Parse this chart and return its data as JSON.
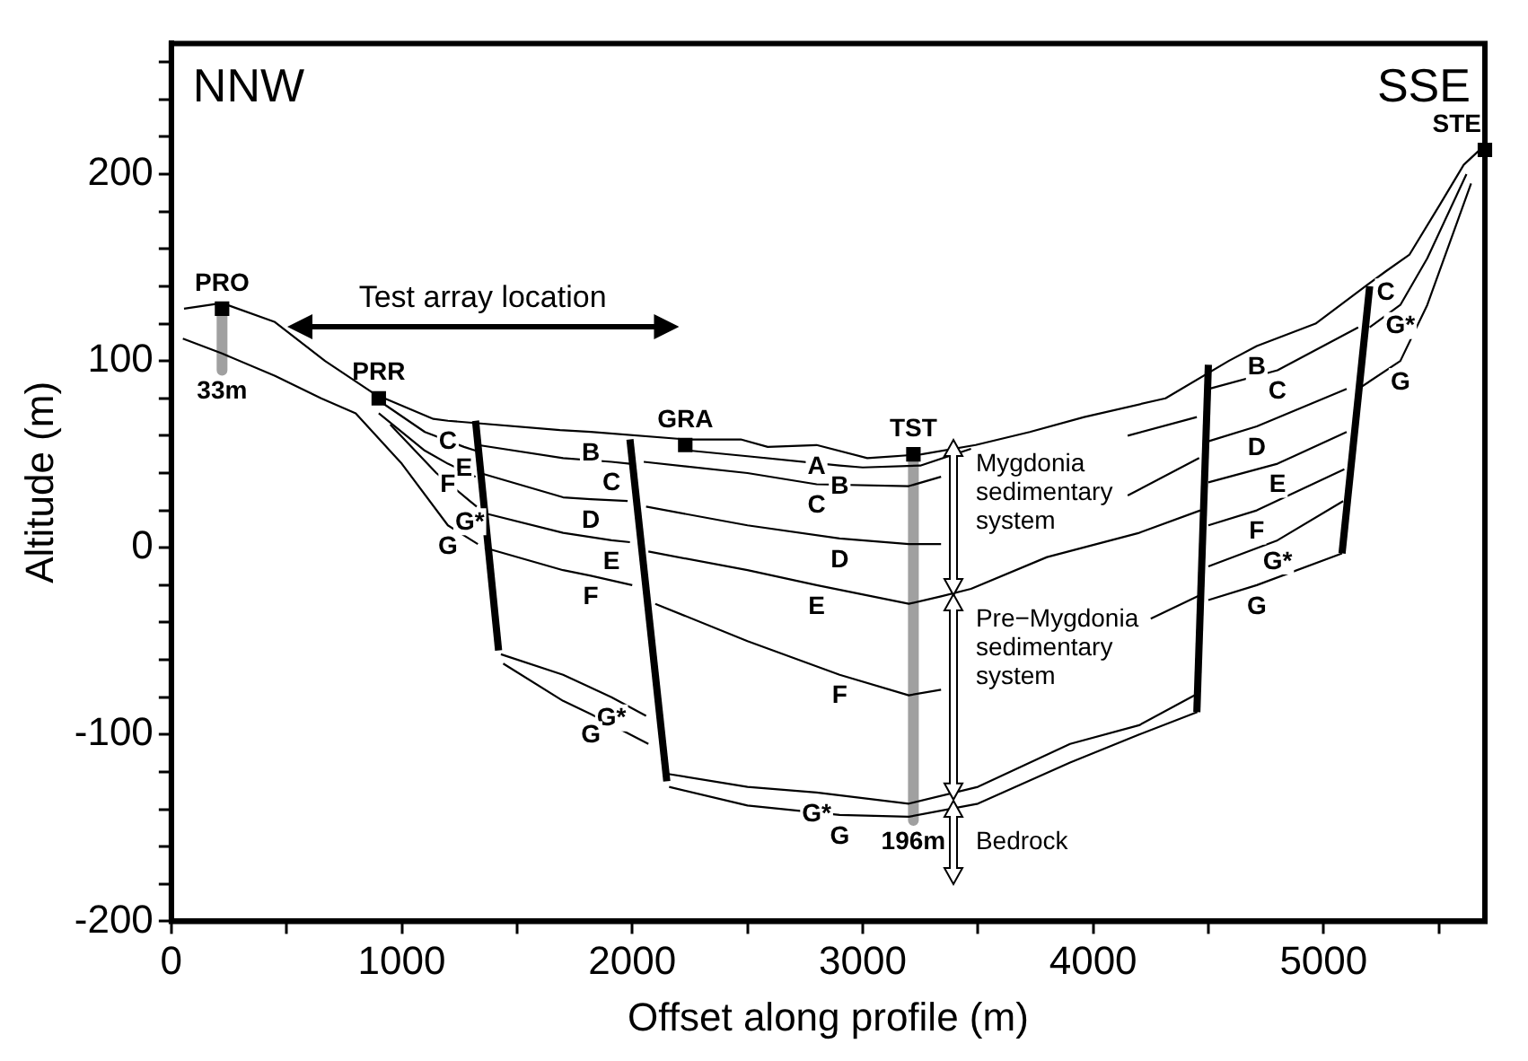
{
  "chart_data": {
    "type": "line",
    "xlabel": "Offset along profile (m)",
    "ylabel": "Altitude (m)",
    "xlim": [
      0,
      5700
    ],
    "ylim": [
      -200,
      270
    ],
    "xticks": [
      0,
      {
        "value": 500,
        "label": null
      },
      1000,
      {
        "value": 1500,
        "label": null
      },
      2000,
      {
        "value": 2500,
        "label": null
      },
      3000,
      {
        "value": 3500,
        "label": null
      },
      4000,
      {
        "value": 4500,
        "label": null
      },
      5000,
      {
        "value": 5500,
        "label": null
      }
    ],
    "yticks": [
      -200,
      {
        "value": -180,
        "label": null
      },
      {
        "value": -160,
        "label": null
      },
      {
        "value": -140,
        "label": null
      },
      {
        "value": -120,
        "label": null
      },
      -100,
      {
        "value": -80,
        "label": null
      },
      {
        "value": -60,
        "label": null
      },
      {
        "value": -40,
        "label": null
      },
      {
        "value": -20,
        "label": null
      },
      0,
      {
        "value": 20,
        "label": null
      },
      {
        "value": 40,
        "label": null
      },
      {
        "value": 60,
        "label": null
      },
      {
        "value": 80,
        "label": null
      },
      100,
      {
        "value": 120,
        "label": null
      },
      {
        "value": 140,
        "label": null
      },
      {
        "value": 160,
        "label": null
      },
      {
        "value": 180,
        "label": null
      },
      200,
      {
        "value": 220,
        "label": null
      },
      {
        "value": 240,
        "label": null
      },
      {
        "value": 260,
        "label": null
      }
    ],
    "grid": false,
    "legend": false,
    "series": [
      {
        "type": "line",
        "color": "#000000",
        "x": [
          55,
          220,
          447,
          667,
          886,
          1137,
          1200,
          1686,
          1820,
          2235,
          2471,
          2588,
          2800,
          3020,
          3255,
          3490,
          3725,
          3961,
          4314,
          4588,
          4710,
          4965,
          5192,
          5270,
          5373,
          5506,
          5608,
          5686
        ],
        "values": [
          128,
          131,
          121,
          100,
          82,
          69,
          68,
          63,
          62,
          58,
          58,
          54,
          55,
          48,
          50,
          55,
          62,
          70,
          80,
          100,
          108,
          120,
          141,
          148,
          157,
          184,
          205,
          214
        ]
      },
      {
        "type": "line",
        "color": "#000000",
        "x": [
          50,
          220,
          450,
          650,
          800,
          1000,
          1200,
          1330
        ],
        "values": [
          112,
          104,
          92,
          80,
          72,
          45,
          12,
          2
        ]
      },
      {
        "type": "line",
        "color": "#000000",
        "x": [
          886,
          1100,
          1270,
          1320
        ],
        "values": [
          80,
          62,
          54,
          52
        ]
      },
      {
        "type": "line",
        "color": "#000000",
        "x": [
          900,
          1100,
          1200,
          1320
        ],
        "values": [
          72,
          52,
          45,
          38
        ]
      },
      {
        "type": "line",
        "color": "#000000",
        "x": [
          950,
          1150,
          1295,
          1325
        ],
        "values": [
          66,
          40,
          25,
          22
        ]
      },
      {
        "type": "line",
        "color": "#000000",
        "x": [
          2250,
          2500,
          2900,
          3000,
          3250,
          3470
        ],
        "values": [
          52,
          49,
          44,
          43,
          44,
          53
        ]
      },
      {
        "type": "line",
        "color": "#000000",
        "x": [
          1330,
          1700,
          1910,
          1990,
          null,
          2050,
          2500,
          2800,
          3200,
          3340,
          null,
          4150,
          4450,
          null,
          4500,
          4800,
          5150
        ],
        "values": [
          55,
          48,
          46,
          45,
          null,
          46,
          40,
          34,
          33,
          38,
          null,
          60,
          70,
          null,
          85,
          95,
          118
        ]
      },
      {
        "type": "line",
        "color": "#000000",
        "x": [
          1340,
          1700,
          1820,
          1980,
          null,
          2060,
          2500,
          2900,
          3200,
          3340,
          null,
          4150,
          4460,
          null,
          4500,
          4710,
          5100
        ],
        "values": [
          40,
          27,
          26,
          25,
          null,
          22,
          12,
          5,
          2,
          2,
          null,
          28,
          48,
          null,
          57,
          65,
          85
        ]
      },
      {
        "type": "line",
        "color": "#000000",
        "x": [
          1375,
          1700,
          1910,
          1990,
          null,
          2070,
          2500,
          2800,
          3200,
          3340,
          3470,
          3800,
          4200,
          4465,
          null,
          4500,
          4800,
          5100
        ],
        "values": [
          18,
          8,
          4,
          3,
          null,
          -2,
          -12,
          -20,
          -30,
          -26,
          -22,
          -5,
          8,
          20,
          null,
          35,
          45,
          62
        ]
      },
      {
        "type": "line",
        "color": "#000000",
        "x": [
          1360,
          1700,
          1820,
          2000,
          null,
          2100,
          2500,
          2900,
          3200,
          3340,
          null,
          4250,
          4470,
          null,
          4500,
          4710,
          5090
        ],
        "values": [
          0,
          -12,
          -15,
          -20,
          null,
          -30,
          -50,
          -68,
          -79,
          -76,
          null,
          -38,
          -25,
          null,
          12,
          20,
          42
        ]
      },
      {
        "type": "line",
        "color": "#000000",
        "x": [
          1430,
          1700,
          1910,
          2060,
          null,
          2150,
          2500,
          2800,
          3200,
          3500,
          3900,
          4200,
          4455,
          null,
          4500,
          4800,
          5085
        ],
        "values": [
          -57,
          -68,
          -80,
          -90,
          null,
          -121,
          -128,
          -131,
          -137,
          -128,
          -105,
          -95,
          -78,
          null,
          -10,
          4,
          25
        ]
      },
      {
        "type": "line",
        "color": "#000000",
        "x": [
          1440,
          1700,
          1820,
          2070,
          null,
          2160,
          2500,
          2900,
          3200,
          3500,
          3900,
          4200,
          4452,
          null,
          4500,
          4710,
          5080
        ],
        "values": [
          -62,
          -82,
          -89,
          -105,
          null,
          -128,
          -138,
          -143,
          -144,
          -137,
          -115,
          -100,
          -88,
          null,
          -28,
          -20,
          -3
        ]
      },
      {
        "type": "line",
        "color": "#000000",
        "x": [
          5200,
          5333,
          5450,
          5620
        ],
        "values": [
          118,
          130,
          155,
          200
        ]
      },
      {
        "type": "line",
        "color": "#000000",
        "x": [
          5150,
          5333,
          5450,
          5640
        ],
        "values": [
          85,
          100,
          130,
          195
        ]
      },
      {
        "type": "line",
        "color": "#000000",
        "x": [
          1320,
          1420
        ],
        "values": [
          68,
          -55
        ]
      },
      {
        "type": "line",
        "color": "#000000",
        "x": [
          1990,
          2150
        ],
        "values": [
          58,
          -125
        ]
      },
      {
        "type": "line",
        "color": "#000000",
        "x": [
          4500,
          4450
        ],
        "values": [
          98,
          -88
        ]
      },
      {
        "type": "line",
        "color": "#000000",
        "x": [
          5200,
          5080
        ],
        "values": [
          140,
          -3
        ]
      },
      {
        "type": "line",
        "color": "#a0a0a0",
        "x": [
          220,
          220
        ],
        "values": [
          128,
          95
        ]
      },
      {
        "type": "line",
        "color": "#a0a0a0",
        "x": [
          3220,
          3220
        ],
        "values": [
          50,
          -146
        ]
      },
      {
        "type": "scatter",
        "marker": "square",
        "color": "#000000",
        "x": [
          220,
          900,
          2230,
          3220,
          5700
        ],
        "values": [
          128,
          80,
          55,
          50,
          213
        ]
      }
    ],
    "annotations": [
      "NNW",
      "SSE",
      "Test array location",
      "Mygdonia sedimentary system",
      "Pre−Mygdonia sedimentary system",
      "Bedrock",
      {
        "text": "PRO",
        "x": 220,
        "y": 128
      },
      {
        "text": "33m",
        "x": 220,
        "y": 95
      },
      {
        "text": "PRR",
        "x": 900,
        "y": 80
      },
      {
        "text": "GRA",
        "x": 2230,
        "y": 55
      },
      {
        "text": "TST",
        "x": 3220,
        "y": 50
      },
      {
        "text": "196m",
        "x": 3220,
        "y": -146
      },
      {
        "text": "STE",
        "x": 5700,
        "y": 213
      },
      {
        "text": "C",
        "x": 1200,
        "y": 68
      },
      {
        "text": "E",
        "x": 1270,
        "y": 54
      },
      {
        "text": "F",
        "x": 1200,
        "y": 45
      },
      {
        "text": "G*",
        "x": 1295,
        "y": 25
      },
      {
        "text": "G",
        "x": 1200,
        "y": 12
      },
      {
        "text": "B",
        "x": 1820,
        "y": 62
      },
      {
        "text": "C",
        "x": 1910,
        "y": 46
      },
      {
        "text": "D",
        "x": 1820,
        "y": 26
      },
      {
        "text": "E",
        "x": 1910,
        "y": 4
      },
      {
        "text": "F",
        "x": 1820,
        "y": -15
      },
      {
        "text": "G*",
        "x": 1910,
        "y": -80
      },
      {
        "text": "G",
        "x": 1820,
        "y": -89
      },
      {
        "text": "A",
        "x": 2800,
        "y": 55
      },
      {
        "text": "B",
        "x": 2900,
        "y": 44
      },
      {
        "text": "C",
        "x": 2800,
        "y": 34
      },
      {
        "text": "D",
        "x": 2900,
        "y": 5
      },
      {
        "text": "E",
        "x": 2800,
        "y": -20
      },
      {
        "text": "F",
        "x": 2900,
        "y": -68
      },
      {
        "text": "G*",
        "x": 2800,
        "y": -131
      },
      {
        "text": "G",
        "x": 2900,
        "y": -143
      },
      {
        "text": "B",
        "x": 4710,
        "y": 108
      },
      {
        "text": "C",
        "x": 4800,
        "y": 95
      },
      {
        "text": "D",
        "x": 4710,
        "y": 65
      },
      {
        "text": "E",
        "x": 4800,
        "y": 45
      },
      {
        "text": "F",
        "x": 4710,
        "y": 20
      },
      {
        "text": "G*",
        "x": 4800,
        "y": 4
      },
      {
        "text": "G",
        "x": 4710,
        "y": -20
      },
      {
        "text": "C",
        "x": 5270,
        "y": 148
      },
      {
        "text": "G*",
        "x": 5333,
        "y": 130
      },
      {
        "text": "G",
        "x": 5333,
        "y": 100
      }
    ]
  }
}
